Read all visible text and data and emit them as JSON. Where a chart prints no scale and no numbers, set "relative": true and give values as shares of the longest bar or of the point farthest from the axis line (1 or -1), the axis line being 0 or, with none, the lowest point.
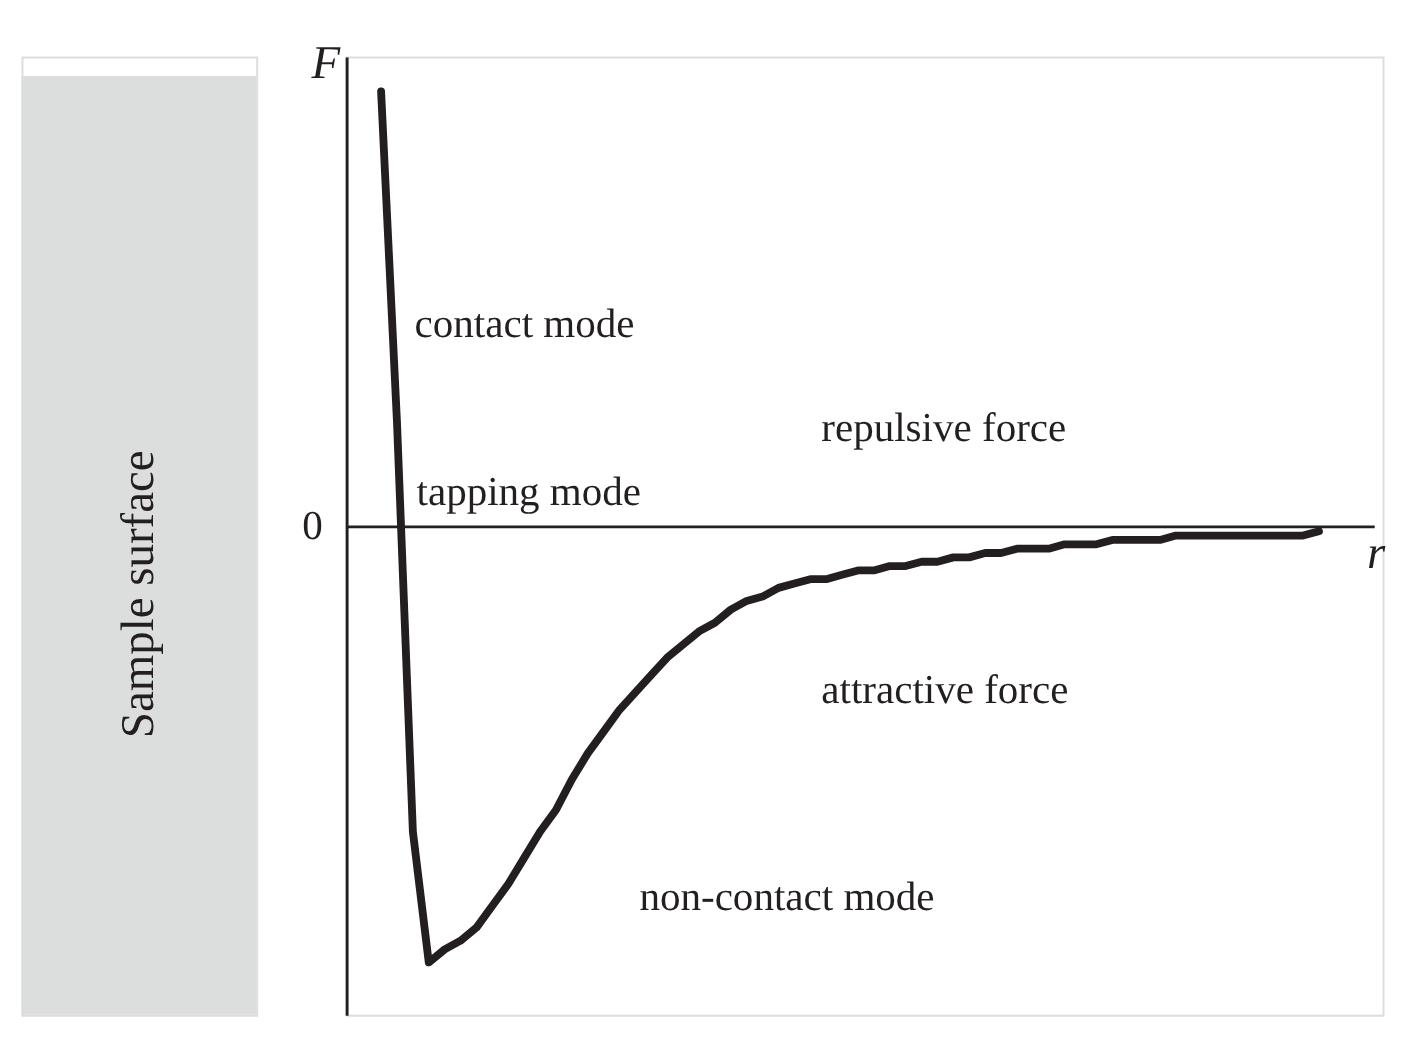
{
  "chart_data": {
    "type": "line",
    "relative": true,
    "xlabel": "r",
    "ylabel": "F",
    "categories": [
      null,
      null,
      null,
      null,
      null,
      null,
      null,
      null,
      null,
      null,
      null,
      null,
      null,
      null,
      null,
      null,
      null,
      null,
      null,
      null,
      null,
      null,
      null,
      null,
      null,
      null,
      null,
      null,
      null,
      null,
      null,
      null,
      null,
      null,
      null,
      null,
      null,
      null,
      null,
      null,
      null,
      null,
      null,
      null,
      null,
      null,
      null,
      null,
      null,
      null,
      null,
      null,
      null,
      null,
      null,
      null,
      null,
      null,
      null,
      null
    ],
    "series": [
      {
        "color": "#231f20",
        "values": [
          1.0,
          0.24,
          -0.7,
          -1.0,
          -0.97,
          -0.95,
          -0.92,
          -0.87,
          -0.82,
          -0.76,
          -0.7,
          -0.65,
          -0.58,
          -0.52,
          -0.47,
          -0.42,
          -0.38,
          -0.34,
          -0.3,
          -0.27,
          -0.24,
          -0.22,
          -0.19,
          -0.17,
          -0.16,
          -0.14,
          -0.13,
          -0.12,
          -0.12,
          -0.11,
          -0.1,
          -0.1,
          -0.09,
          -0.09,
          -0.08,
          -0.08,
          -0.07,
          -0.07,
          -0.06,
          -0.06,
          -0.05,
          -0.05,
          -0.05,
          -0.04,
          -0.04,
          -0.04,
          -0.03,
          -0.03,
          -0.03,
          -0.03,
          -0.02,
          -0.02,
          -0.02,
          -0.02,
          -0.02,
          -0.02,
          -0.02,
          -0.02,
          -0.02,
          -0.01
        ]
      }
    ],
    "annotations": [
      "0",
      "contact mode",
      "tapping mode",
      "repulsive force",
      "attractive force",
      "non-contact mode",
      "Sample surface"
    ],
    "grid": false,
    "marker": "none",
    "line_style": "solid"
  }
}
